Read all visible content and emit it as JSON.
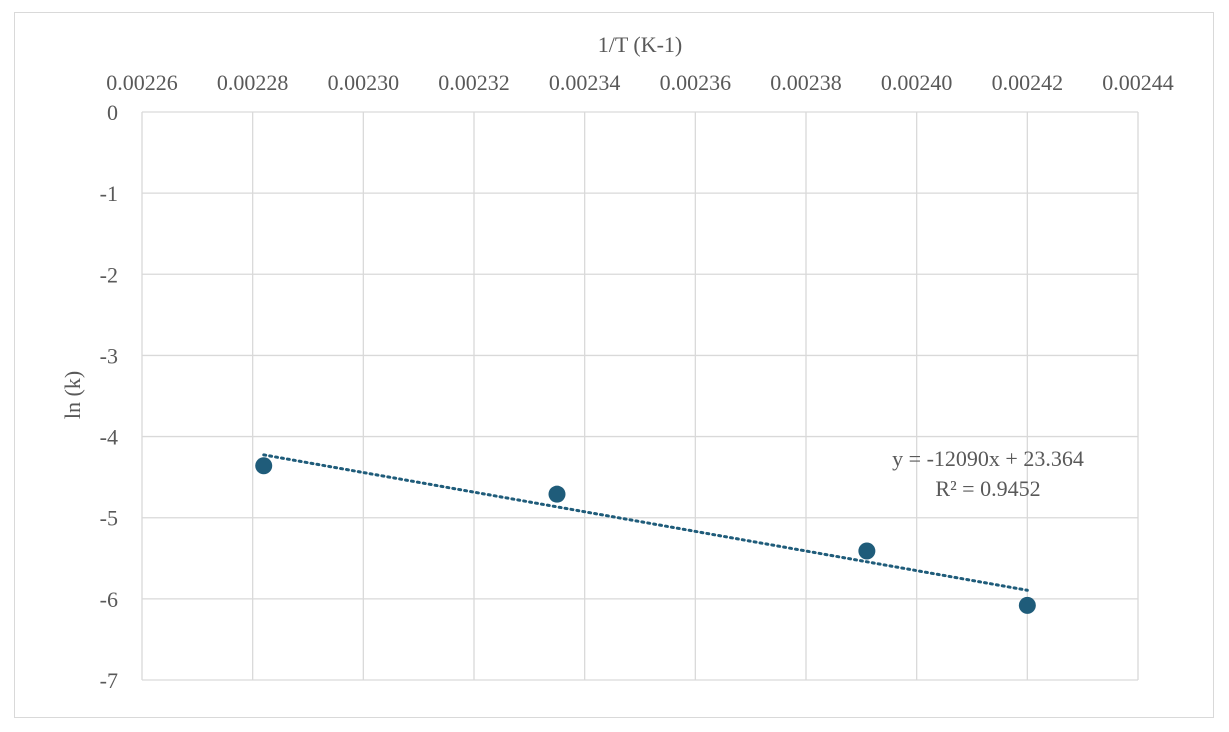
{
  "chart_data": {
    "type": "scatter",
    "xlabel": "1/T (K-1)",
    "ylabel": "ln (k)",
    "x_axis_position": "top",
    "xlim": [
      0.00226,
      0.00244
    ],
    "ylim": [
      -7,
      0
    ],
    "x_ticks": [
      "0.00226",
      "0.00228",
      "0.00230",
      "0.00232",
      "0.00234",
      "0.00236",
      "0.00238",
      "0.00240",
      "0.00242",
      "0.00244"
    ],
    "y_ticks": [
      "0",
      "-1",
      "-2",
      "-3",
      "-4",
      "-5",
      "-6",
      "-7"
    ],
    "grid": true,
    "legend": false,
    "marker_color": "#1f5c7a",
    "series": [
      {
        "x": [
          0.002282,
          0.002335,
          0.002391,
          0.00242
        ],
        "y": [
          -4.36,
          -4.71,
          -5.41,
          -6.08
        ]
      }
    ],
    "trendline": {
      "type": "linear",
      "style": "dotted",
      "color": "#1f5c7a",
      "slope": -12090,
      "intercept": 23.364,
      "equation": "y = -12090x + 23.364",
      "r_squared": "R² = 0.9452"
    }
  }
}
